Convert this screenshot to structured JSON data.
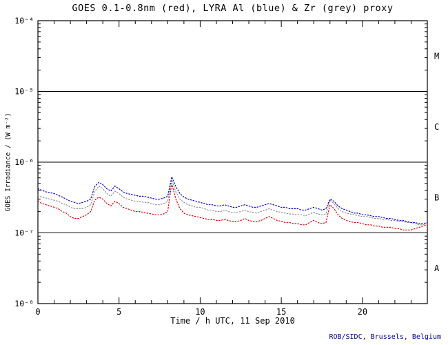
{
  "page": {
    "title": "GOES 0.1-0.8nm (red), LYRA Al (blue) & Zr (grey) proxy",
    "footer_credit": "ROB/SIDC, Brussels, Belgium"
  },
  "colors": {
    "goes_red": "#dd0000",
    "lyra_al_blue": "#0000cc",
    "lyra_zr_grey": "#909090",
    "axis_black": "#000000",
    "credit_navy": "#00008b"
  },
  "chart_data": {
    "type": "line",
    "title": "GOES 0.1-0.8nm (red), LYRA Al (blue) & Zr (grey) proxy",
    "xlabel": "Time / h UTC, 11 Sep 2010",
    "ylabel": "GOES Irradiance / (W m⁻²)",
    "y_scale": "log",
    "y_range_exp": [
      -8,
      -4
    ],
    "y_tick_exponents": [
      -4,
      -5,
      -6,
      -7,
      -8
    ],
    "y_tick_labels": [
      "10⁻⁴",
      "10⁻⁵",
      "10⁻⁶",
      "10⁻⁷",
      "10⁻⁸"
    ],
    "hline_exponents": [
      -5,
      -6,
      -7
    ],
    "flare_class_labels": [
      {
        "label": "M",
        "mid_exp": -4.5
      },
      {
        "label": "C",
        "mid_exp": -5.5
      },
      {
        "label": "B",
        "mid_exp": -6.5
      },
      {
        "label": "A",
        "mid_exp": -7.5
      }
    ],
    "x_range": [
      0,
      24
    ],
    "x_major_ticks": [
      0,
      5,
      10,
      15,
      20
    ],
    "x_tick_labels": [
      "0",
      "5",
      "10",
      "15",
      "20"
    ],
    "x_minor_step": 1,
    "x_step": 0.25,
    "unit_scale": 1e-07,
    "units": "values are multiples of 1e-7 W m-2",
    "series": [
      {
        "name": "GOES 0.1-0.8nm",
        "color": "#dd0000",
        "values": [
          2.8,
          2.6,
          2.5,
          2.4,
          2.3,
          2.2,
          2.0,
          1.9,
          1.7,
          1.6,
          1.6,
          1.7,
          1.8,
          2.0,
          2.9,
          3.2,
          3.0,
          2.6,
          2.4,
          2.8,
          2.6,
          2.3,
          2.2,
          2.1,
          2.0,
          2.0,
          1.95,
          1.9,
          1.85,
          1.8,
          1.8,
          1.85,
          2.0,
          5.0,
          3.0,
          2.2,
          1.9,
          1.8,
          1.75,
          1.7,
          1.65,
          1.6,
          1.55,
          1.55,
          1.5,
          1.5,
          1.55,
          1.5,
          1.45,
          1.45,
          1.5,
          1.6,
          1.5,
          1.45,
          1.45,
          1.5,
          1.6,
          1.7,
          1.6,
          1.5,
          1.45,
          1.4,
          1.4,
          1.35,
          1.35,
          1.3,
          1.3,
          1.4,
          1.5,
          1.4,
          1.35,
          1.4,
          2.5,
          2.2,
          1.8,
          1.6,
          1.5,
          1.45,
          1.4,
          1.4,
          1.35,
          1.3,
          1.3,
          1.25,
          1.25,
          1.2,
          1.2,
          1.2,
          1.15,
          1.15,
          1.1,
          1.1,
          1.1,
          1.15,
          1.2,
          1.25,
          1.3
        ]
      },
      {
        "name": "LYRA Zr proxy",
        "color": "#909090",
        "values": [
          3.4,
          3.2,
          3.1,
          3.0,
          2.9,
          2.8,
          2.6,
          2.5,
          2.3,
          2.2,
          2.2,
          2.2,
          2.3,
          2.5,
          3.8,
          4.6,
          4.2,
          3.6,
          3.3,
          3.9,
          3.6,
          3.2,
          3.0,
          2.9,
          2.8,
          2.8,
          2.7,
          2.7,
          2.6,
          2.5,
          2.5,
          2.6,
          2.8,
          5.6,
          3.8,
          3.0,
          2.7,
          2.5,
          2.4,
          2.3,
          2.3,
          2.2,
          2.1,
          2.1,
          2.0,
          2.0,
          2.1,
          2.0,
          1.95,
          1.95,
          2.0,
          2.1,
          2.0,
          1.95,
          1.9,
          2.0,
          2.1,
          2.2,
          2.1,
          2.0,
          1.95,
          1.9,
          1.85,
          1.85,
          1.8,
          1.8,
          1.75,
          1.85,
          1.95,
          1.85,
          1.8,
          1.85,
          2.9,
          2.6,
          2.2,
          2.0,
          1.9,
          1.85,
          1.8,
          1.75,
          1.7,
          1.7,
          1.65,
          1.6,
          1.6,
          1.55,
          1.55,
          1.5,
          1.5,
          1.45,
          1.45,
          1.4,
          1.4,
          1.35,
          1.3,
          1.3,
          1.35
        ]
      },
      {
        "name": "LYRA Al proxy",
        "color": "#0000cc",
        "values": [
          4.2,
          4.0,
          3.8,
          3.7,
          3.6,
          3.4,
          3.2,
          3.0,
          2.8,
          2.7,
          2.6,
          2.7,
          2.8,
          3.0,
          4.5,
          5.2,
          4.8,
          4.2,
          3.9,
          4.6,
          4.2,
          3.8,
          3.6,
          3.5,
          3.4,
          3.3,
          3.3,
          3.2,
          3.1,
          3.0,
          3.0,
          3.1,
          3.3,
          6.2,
          4.5,
          3.6,
          3.2,
          3.0,
          2.9,
          2.8,
          2.7,
          2.6,
          2.5,
          2.5,
          2.4,
          2.4,
          2.5,
          2.4,
          2.3,
          2.3,
          2.4,
          2.5,
          2.4,
          2.3,
          2.3,
          2.4,
          2.5,
          2.6,
          2.5,
          2.4,
          2.3,
          2.3,
          2.2,
          2.2,
          2.2,
          2.1,
          2.1,
          2.2,
          2.3,
          2.2,
          2.1,
          2.2,
          3.0,
          2.8,
          2.4,
          2.2,
          2.1,
          2.0,
          1.9,
          1.9,
          1.8,
          1.8,
          1.75,
          1.7,
          1.7,
          1.65,
          1.6,
          1.6,
          1.55,
          1.5,
          1.5,
          1.45,
          1.4,
          1.4,
          1.35,
          1.35,
          1.4
        ]
      }
    ]
  }
}
